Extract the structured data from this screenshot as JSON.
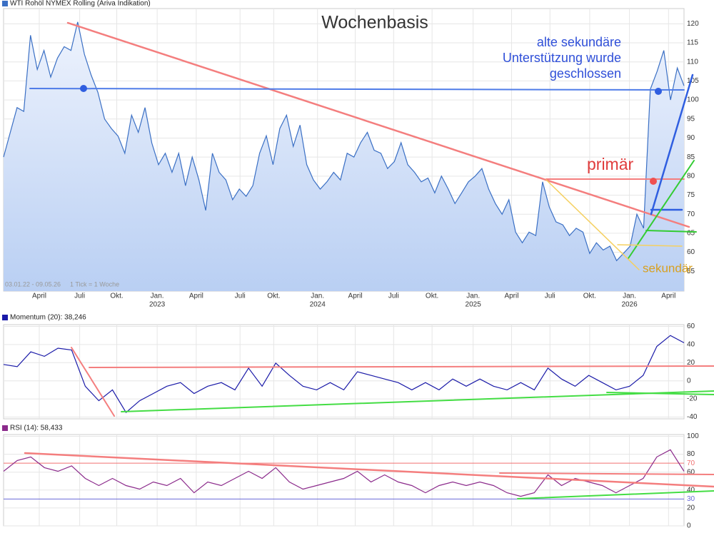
{
  "chart_data": [
    {
      "type": "area",
      "title": "WTI Rohöl NYMEX Rolling (Ariva Indikation)",
      "color": "#3a6fc4",
      "values": [
        85,
        91.5,
        98,
        97,
        117,
        108,
        113,
        106,
        111,
        114,
        113,
        120.5,
        112,
        106.5,
        102,
        95,
        92.5,
        90.5,
        86,
        96,
        91.5,
        98,
        88.7,
        83,
        86,
        81,
        86,
        77.5,
        85,
        79,
        71,
        86,
        81,
        79,
        73.8,
        76.6,
        74.7,
        77.5,
        86,
        90.6,
        83,
        92.5,
        96,
        87.8,
        93.4,
        83,
        79,
        76.6,
        78.5,
        81,
        79,
        86,
        85,
        88.8,
        91.5,
        86.8,
        86,
        82,
        83.8,
        88.8,
        83,
        81,
        78.5,
        79.5,
        75.6,
        80,
        76.6,
        72.8,
        75.6,
        78.5,
        80,
        82,
        76.6,
        72.8,
        70,
        73.8,
        65.3,
        62.5,
        65.3,
        64.4,
        78.5,
        71.9,
        68,
        67.2,
        64.4,
        66.3,
        65.3,
        59.7,
        62.5,
        60.6,
        61.6,
        57.8,
        59.7,
        61.6,
        70,
        66.3,
        102.8,
        107.5,
        113,
        100,
        108.4,
        103.7
      ],
      "xlim": [
        0,
        101
      ],
      "ylim": [
        49.8,
        124
      ],
      "yticks": [
        55,
        60,
        65,
        70,
        75,
        80,
        85,
        90,
        95,
        100,
        105,
        110,
        115,
        120
      ],
      "xticks": [
        {
          "value": 5.3,
          "label": "April"
        },
        {
          "value": 11.3,
          "label": "Juli"
        },
        {
          "value": 16.8,
          "label": "Okt."
        },
        {
          "value": 22.8,
          "label": "Jan.",
          "year": "2023"
        },
        {
          "value": 28.6,
          "label": "April"
        },
        {
          "value": 35.1,
          "label": "Juli"
        },
        {
          "value": 40.1,
          "label": "Okt."
        },
        {
          "value": 46.6,
          "label": "Jan.",
          "year": "2024"
        },
        {
          "value": 52.2,
          "label": "April"
        },
        {
          "value": 57.9,
          "label": "Juli"
        },
        {
          "value": 63.6,
          "label": "Okt."
        },
        {
          "value": 69.7,
          "label": "Jan.",
          "year": "2025"
        },
        {
          "value": 75.4,
          "label": "April"
        },
        {
          "value": 81.1,
          "label": "Juli"
        },
        {
          "value": 87.0,
          "label": "Okt."
        },
        {
          "value": 92.9,
          "label": "Jan.",
          "year": "2026"
        },
        {
          "value": 98.7,
          "label": "April"
        }
      ],
      "annotations": {
        "heading": "Wochenbasis",
        "note": [
          "alte sekundäre",
          "Unterstützung wurde",
          "geschlossen"
        ],
        "primary": "primär",
        "secondary": "sekundär",
        "range": "03.01.22 - 09.05.26",
        "tick": "1 Tick = 1 Woche"
      }
    },
    {
      "type": "line",
      "title": "Momentum (20): 38,246",
      "color": "#1a1aa8",
      "values": [
        18,
        15.6,
        32,
        27,
        36,
        34,
        -6,
        -22,
        -10,
        -35,
        -22,
        -14,
        -6,
        -2,
        -14,
        -6,
        -2,
        -10,
        14,
        -6,
        19.5,
        6,
        -6,
        -10,
        -2,
        -10,
        10,
        6,
        2,
        -2,
        -10,
        -2,
        -10,
        2,
        -6,
        2,
        -6,
        -10,
        -2,
        -10,
        14,
        2,
        -6,
        6,
        -2,
        -10,
        -6,
        6,
        38,
        50,
        42
      ],
      "xlim": [
        0,
        50
      ],
      "ylim": [
        -42,
        62
      ],
      "yticks": [
        -40,
        -20,
        0,
        20,
        40,
        60
      ]
    },
    {
      "type": "line",
      "title": "RSI (14): 58,433",
      "color": "#8b2a8b",
      "values": [
        61,
        73,
        77,
        65,
        61,
        67,
        53,
        45,
        53,
        45,
        41,
        49,
        45,
        53,
        37,
        49,
        45,
        53,
        61,
        53,
        65,
        49,
        41,
        45,
        49,
        53,
        61,
        49,
        57,
        49,
        45,
        37,
        45,
        49,
        45,
        49,
        45,
        37,
        33,
        37,
        57,
        45,
        53,
        49,
        45,
        37,
        45,
        53,
        77,
        85,
        61
      ],
      "xlim": [
        0,
        50
      ],
      "ylim": [
        0,
        102
      ],
      "yticks": [
        0,
        20,
        30,
        40,
        60,
        70,
        80,
        100
      ],
      "levels": [
        70,
        30
      ],
      "level_colors": [
        "#f07070",
        "#6a6ad8"
      ]
    }
  ]
}
